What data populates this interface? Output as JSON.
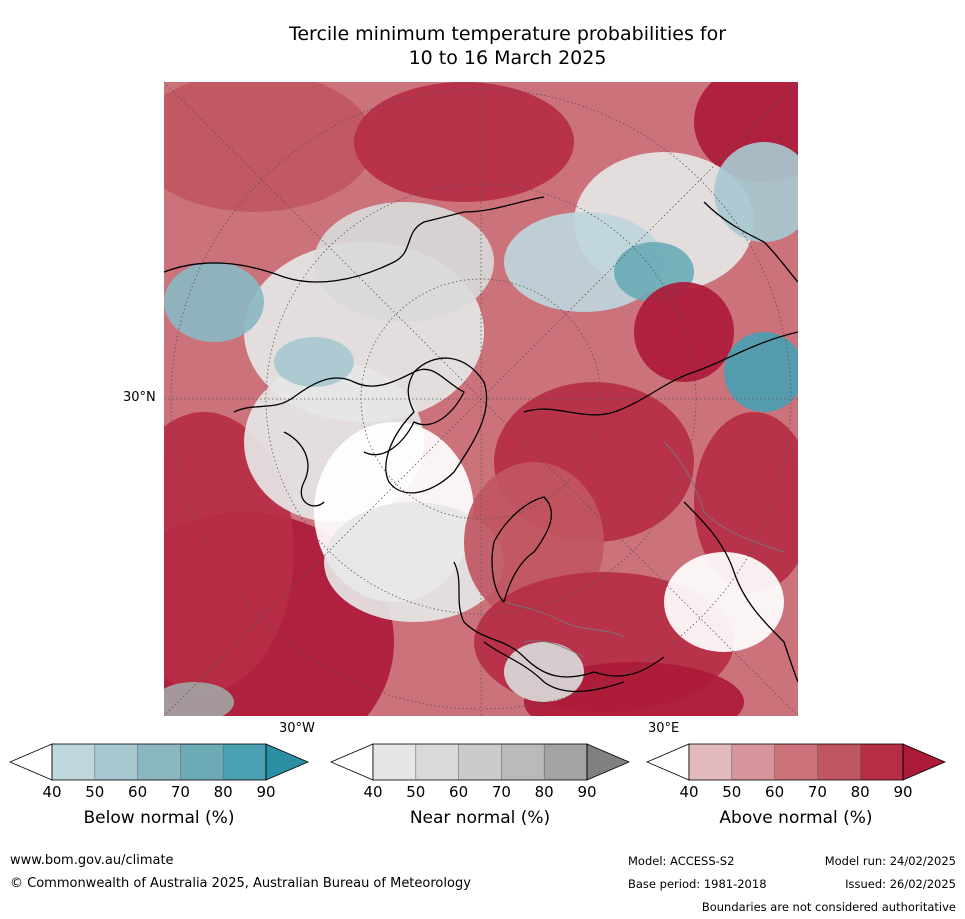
{
  "title_line1": "Tercile minimum temperature probabilities for",
  "title_line2": "10 to 16 March 2025",
  "map": {
    "lat_label": "30°N",
    "lon_label_west": "30°W",
    "lon_label_east": "30°E",
    "colors": {
      "above": [
        "#e2b9bd",
        "#d6959b",
        "#cc727b",
        "#c05662",
        "#b62e44",
        "#ad1a38"
      ],
      "near": [
        "#e6e6e6",
        "#d9d9d9",
        "#cbcbcb",
        "#bababa",
        "#a3a3a3",
        "#808080"
      ],
      "below": [
        "#bed6dc",
        "#a8c8d0",
        "#8bb7c2",
        "#6cabb6",
        "#4aa0b1",
        "#2b8fa3"
      ]
    }
  },
  "colorbars": [
    {
      "id": "below",
      "title": "Below normal (%)",
      "ticks": [
        "40",
        "50",
        "60",
        "70",
        "80",
        "90"
      ],
      "colors": [
        "#ffffff",
        "#bed6dc",
        "#a8c8d0",
        "#8bb7c2",
        "#6cabb6",
        "#4aa0b1",
        "#2b8fa3"
      ]
    },
    {
      "id": "near",
      "title": "Near normal (%)",
      "ticks": [
        "40",
        "50",
        "60",
        "70",
        "80",
        "90"
      ],
      "colors": [
        "#ffffff",
        "#e6e6e6",
        "#d9d9d9",
        "#cbcbcb",
        "#bababa",
        "#a3a3a3",
        "#808080"
      ]
    },
    {
      "id": "above",
      "title": "Above normal (%)",
      "ticks": [
        "40",
        "50",
        "60",
        "70",
        "80",
        "90"
      ],
      "colors": [
        "#ffffff",
        "#e2b9bd",
        "#d6959b",
        "#cc727b",
        "#c05662",
        "#b62e44",
        "#ad1a38"
      ]
    }
  ],
  "footer": {
    "website": "www.bom.gov.au/climate",
    "copyright": "© Commonwealth of Australia 2025, Australian Bureau of Meteorology",
    "model": "Model: ACCESS-S2",
    "model_run": "Model run: 24/02/2025",
    "base_period": "Base period: 1981-2018",
    "issued": "Issued: 26/02/2025",
    "disclaimer": "Boundaries are not considered authoritative"
  }
}
